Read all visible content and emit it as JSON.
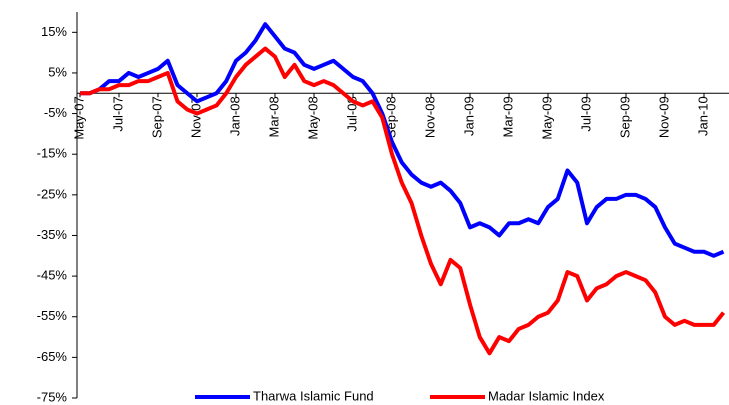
{
  "chart_data": {
    "type": "line",
    "categories": [
      "May-07",
      null,
      null,
      null,
      "Jul-07",
      null,
      null,
      null,
      "Sep-07",
      null,
      null,
      null,
      "Nov-07",
      null,
      null,
      null,
      "Jan-08",
      null,
      null,
      null,
      "Mar-08",
      null,
      null,
      null,
      "May-08",
      null,
      null,
      null,
      "Jul-08",
      null,
      null,
      null,
      "Sep-08",
      null,
      null,
      null,
      "Nov-08",
      null,
      null,
      null,
      "Jan-09",
      null,
      null,
      null,
      "Mar-09",
      null,
      null,
      null,
      "May-09",
      null,
      null,
      null,
      "Jul-09",
      null,
      null,
      null,
      "Sep-09",
      null,
      null,
      null,
      "Nov-09",
      null,
      null,
      null,
      "Jan-10",
      null,
      null
    ],
    "series": [
      {
        "name": "Tharwa Islamic Fund",
        "color": "#0000ff",
        "values": [
          0,
          0,
          1,
          3,
          3,
          5,
          4,
          5,
          6,
          8,
          2,
          0,
          -2,
          -1,
          0,
          3,
          8,
          10,
          13,
          17,
          14,
          11,
          10,
          7,
          6,
          7,
          8,
          6,
          4,
          3,
          0,
          -5,
          -12,
          -17,
          -20,
          -22,
          -23,
          -22,
          -24,
          -27,
          -33,
          -32,
          -33,
          -35,
          -32,
          -32,
          -31,
          -32,
          -28,
          -26,
          -19,
          -22,
          -32,
          -28,
          -26,
          -26,
          -25,
          -25,
          -26,
          -28,
          -33,
          -37,
          -38,
          -39,
          -39,
          -40,
          -39
        ]
      },
      {
        "name": "Madar Islamic Index",
        "color": "#ff0000",
        "values": [
          0,
          0,
          1,
          1,
          2,
          2,
          3,
          3,
          4,
          5,
          -2,
          -4,
          -5,
          -4,
          -3,
          0,
          4,
          7,
          9,
          11,
          9,
          4,
          7,
          3,
          2,
          3,
          2,
          0,
          -2,
          -3,
          -2,
          -6,
          -15,
          -22,
          -27,
          -35,
          -42,
          -47,
          -41,
          -43,
          -52,
          -60,
          -64,
          -60,
          -61,
          -58,
          -57,
          -55,
          -54,
          -51,
          -44,
          -45,
          -51,
          -48,
          -47,
          -45,
          -44,
          -45,
          -46,
          -49,
          -55,
          -57,
          -56,
          -57,
          -57,
          -57,
          -54
        ]
      }
    ],
    "ylim": [
      -75,
      20
    ],
    "yticks": [
      {
        "value": -75,
        "label": "-75%"
      },
      {
        "value": -65,
        "label": "-65%"
      },
      {
        "value": -55,
        "label": "-55%"
      },
      {
        "value": -45,
        "label": "-45%"
      },
      {
        "value": -35,
        "label": "-35%"
      },
      {
        "value": -25,
        "label": "-25%"
      },
      {
        "value": -15,
        "label": "-15%"
      },
      {
        "value": -5,
        "label": "-5%"
      },
      {
        "value": 5,
        "label": "5%"
      },
      {
        "value": 15,
        "label": "15%"
      }
    ],
    "legend": "bottom"
  }
}
